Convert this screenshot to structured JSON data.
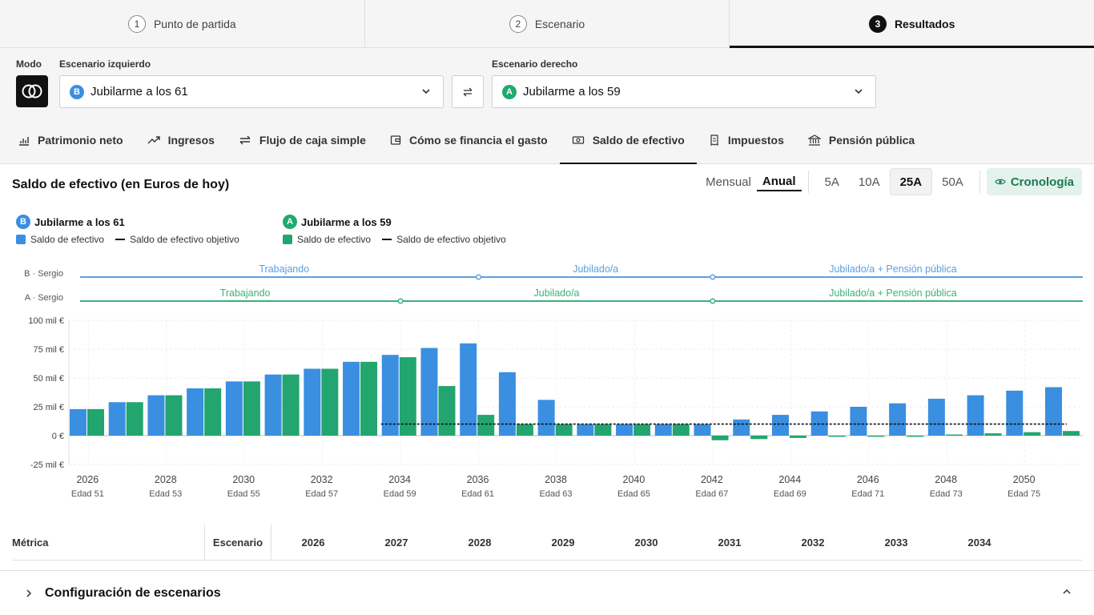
{
  "steps": [
    {
      "num": "1",
      "label": "Punto de partida"
    },
    {
      "num": "2",
      "label": "Escenario"
    },
    {
      "num": "3",
      "label": "Resultados"
    }
  ],
  "selectors": {
    "mode_label": "Modo",
    "left_label": "Escenario izquierdo",
    "left_badge": "B",
    "left_value": "Jubilarme a los 61",
    "right_label": "Escenario derecho",
    "right_badge": "A",
    "right_value": "Jubilarme a los 59"
  },
  "tabs": [
    {
      "label": "Patrimonio neto",
      "icon": "bar-chart-icon"
    },
    {
      "label": "Ingresos",
      "icon": "trend-up-icon"
    },
    {
      "label": "Flujo de caja simple",
      "icon": "arrows-icon"
    },
    {
      "label": "Cómo se financia el gasto",
      "icon": "wallet-icon"
    },
    {
      "label": "Saldo de efectivo",
      "icon": "cash-icon"
    },
    {
      "label": "Impuestos",
      "icon": "receipt-icon"
    },
    {
      "label": "Pensión pública",
      "icon": "bank-icon"
    }
  ],
  "chart_header": {
    "title": "Saldo de efectivo (en Euros de hoy)",
    "mensual": "Mensual",
    "anual": "Anual",
    "ranges": [
      "5A",
      "10A",
      "25A",
      "50A"
    ],
    "selected_range": "25A",
    "cronologia": "Cronología"
  },
  "legend": {
    "b_badge": "B",
    "b_title": "Jubilarme a los 61",
    "a_badge": "A",
    "a_title": "Jubilarme a los 59",
    "bar_label": "Saldo de efectivo",
    "target_label": "Saldo de efectivo objetivo"
  },
  "timeline": {
    "b_row": "B · Sergio",
    "a_row": "A · Sergio",
    "b_phases": [
      "Trabajando",
      "Jubilado/a",
      "Jubilado/a + Pensión pública"
    ],
    "a_phases": [
      "Trabajando",
      "Jubilado/a",
      "Jubilado/a + Pensión pública"
    ]
  },
  "chart_data": {
    "type": "bar",
    "x": [
      2026,
      2027,
      2028,
      2029,
      2030,
      2031,
      2032,
      2033,
      2034,
      2035,
      2036,
      2037,
      2038,
      2039,
      2040,
      2041,
      2042,
      2043,
      2044,
      2045,
      2046,
      2047,
      2048,
      2049,
      2050,
      2051
    ],
    "x_tick_labels": [
      "2026",
      "2028",
      "2030",
      "2032",
      "2034",
      "2036",
      "2038",
      "2040",
      "2042",
      "2044",
      "2046",
      "2048",
      "2050"
    ],
    "age_labels": [
      "Edad 51",
      "Edad 53",
      "Edad 55",
      "Edad 57",
      "Edad 59",
      "Edad 61",
      "Edad 63",
      "Edad 65",
      "Edad 67",
      "Edad 69",
      "Edad 71",
      "Edad 73",
      "Edad 75"
    ],
    "y_ticks": [
      "100 mil €",
      "75 mil €",
      "50 mil €",
      "25 mil €",
      "0 €",
      "-25 mil €"
    ],
    "ylim": [
      -25,
      100
    ],
    "unit": "mil €",
    "series": [
      {
        "name": "B · Saldo de efectivo",
        "color": "#3a8fe0",
        "values": [
          23,
          29,
          35,
          41,
          47,
          53,
          58,
          64,
          70,
          76,
          80,
          55,
          31,
          10,
          10,
          10,
          10,
          14,
          18,
          21,
          25,
          28,
          32,
          35,
          39,
          42
        ]
      },
      {
        "name": "A · Saldo de efectivo",
        "color": "#22a56e",
        "values": [
          23,
          29,
          35,
          41,
          47,
          53,
          58,
          64,
          68,
          43,
          18,
          10,
          10,
          10,
          10,
          10,
          -4,
          -3,
          -2,
          -1,
          -1,
          -1,
          1,
          2,
          3,
          4
        ]
      }
    ],
    "target": {
      "name": "Saldo de efectivo objetivo",
      "value": 10,
      "from": 2034
    }
  },
  "table": {
    "metric_header": "Métrica",
    "scenario_header": "Escenario",
    "years": [
      "2026",
      "2027",
      "2028",
      "2029",
      "2030",
      "2031",
      "2032",
      "2033",
      "2034"
    ]
  },
  "config": {
    "label": "Configuración de escenarios"
  }
}
